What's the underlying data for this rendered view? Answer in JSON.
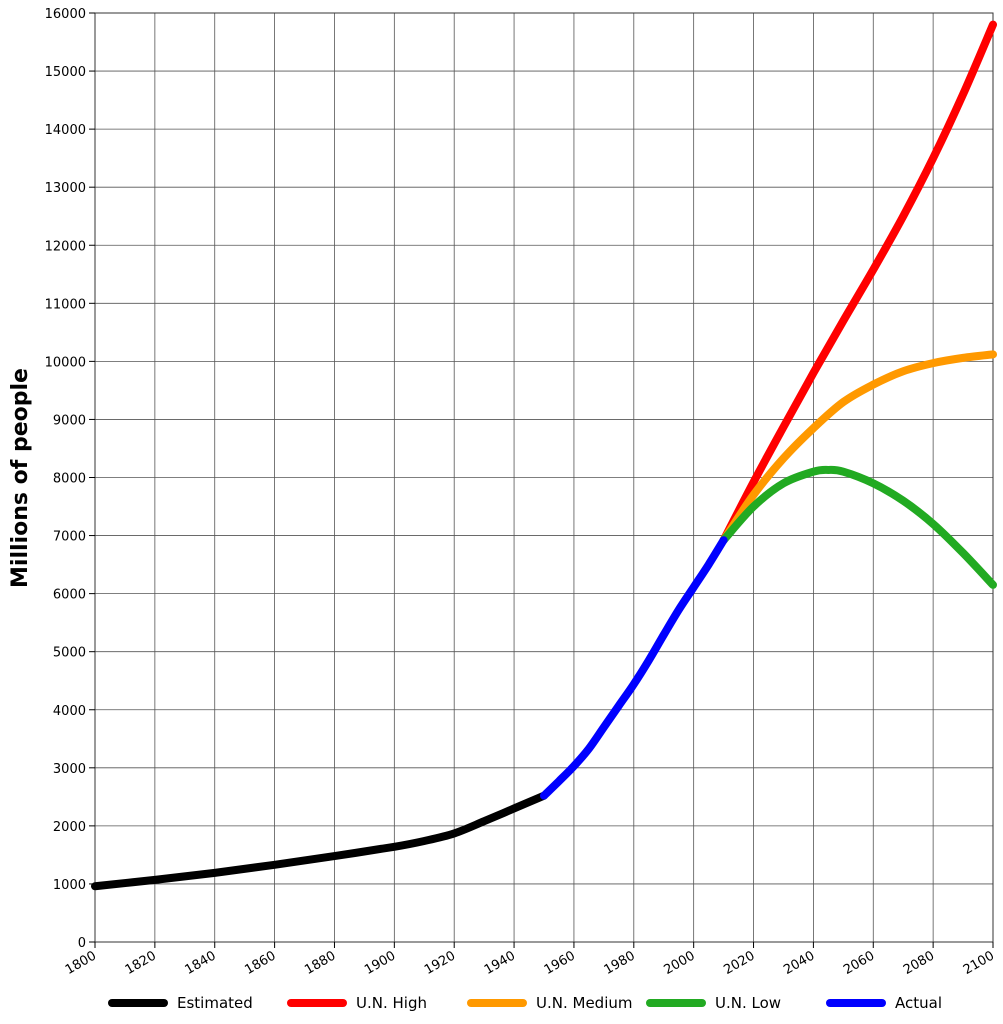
{
  "chart_data": {
    "type": "line",
    "title": "",
    "xlabel": "",
    "ylabel": "Millions of people",
    "xlim": [
      1800,
      2100
    ],
    "ylim": [
      0,
      16000
    ],
    "xticks": [
      "1800",
      "1820",
      "1840",
      "1860",
      "1880",
      "1900",
      "1920",
      "1940",
      "1960",
      "1980",
      "2000",
      "2020",
      "2040",
      "2060",
      "2080",
      "2100"
    ],
    "yticks": [
      "0",
      "1000",
      "2000",
      "3000",
      "4000",
      "5000",
      "6000",
      "7000",
      "8000",
      "9000",
      "10000",
      "11000",
      "12000",
      "13000",
      "14000",
      "15000",
      "16000"
    ],
    "grid": true,
    "legend_position": "bottom",
    "series": [
      {
        "name": "Estimated",
        "color": "#000000",
        "x": [
          1800,
          1820,
          1840,
          1860,
          1880,
          1900,
          1910,
          1920,
          1930,
          1940,
          1950
        ],
        "y": [
          960,
          1070,
          1190,
          1330,
          1480,
          1640,
          1740,
          1870,
          2080,
          2300,
          2520
        ]
      },
      {
        "name": "Actual",
        "color": "#0000ff",
        "x": [
          1950,
          1955,
          1960,
          1965,
          1970,
          1975,
          1980,
          1985,
          1990,
          1995,
          2000,
          2005,
          2010
        ],
        "y": [
          2520,
          2770,
          3030,
          3330,
          3700,
          4070,
          4440,
          4850,
          5290,
          5720,
          6110,
          6500,
          6920
        ]
      },
      {
        "name": "U.N. High",
        "color": "#ff0000",
        "x": [
          2010,
          2020,
          2030,
          2040,
          2050,
          2060,
          2070,
          2080,
          2090,
          2100
        ],
        "y": [
          6920,
          7920,
          8870,
          9800,
          10700,
          11580,
          12500,
          13500,
          14600,
          15800
        ]
      },
      {
        "name": "U.N. Medium",
        "color": "#ff9900",
        "x": [
          2010,
          2020,
          2030,
          2040,
          2050,
          2060,
          2070,
          2080,
          2090,
          2100
        ],
        "y": [
          6920,
          7700,
          8330,
          8850,
          9300,
          9600,
          9830,
          9970,
          10060,
          10120
        ]
      },
      {
        "name": "U.N. Low",
        "color": "#22aa22",
        "x": [
          2010,
          2020,
          2030,
          2040,
          2045,
          2050,
          2060,
          2070,
          2080,
          2090,
          2100
        ],
        "y": [
          6920,
          7500,
          7900,
          8100,
          8130,
          8100,
          7900,
          7600,
          7200,
          6700,
          6150
        ]
      }
    ],
    "legend": [
      "Estimated",
      "U.N. High",
      "U.N. Medium",
      "U.N. Low",
      "Actual"
    ]
  }
}
